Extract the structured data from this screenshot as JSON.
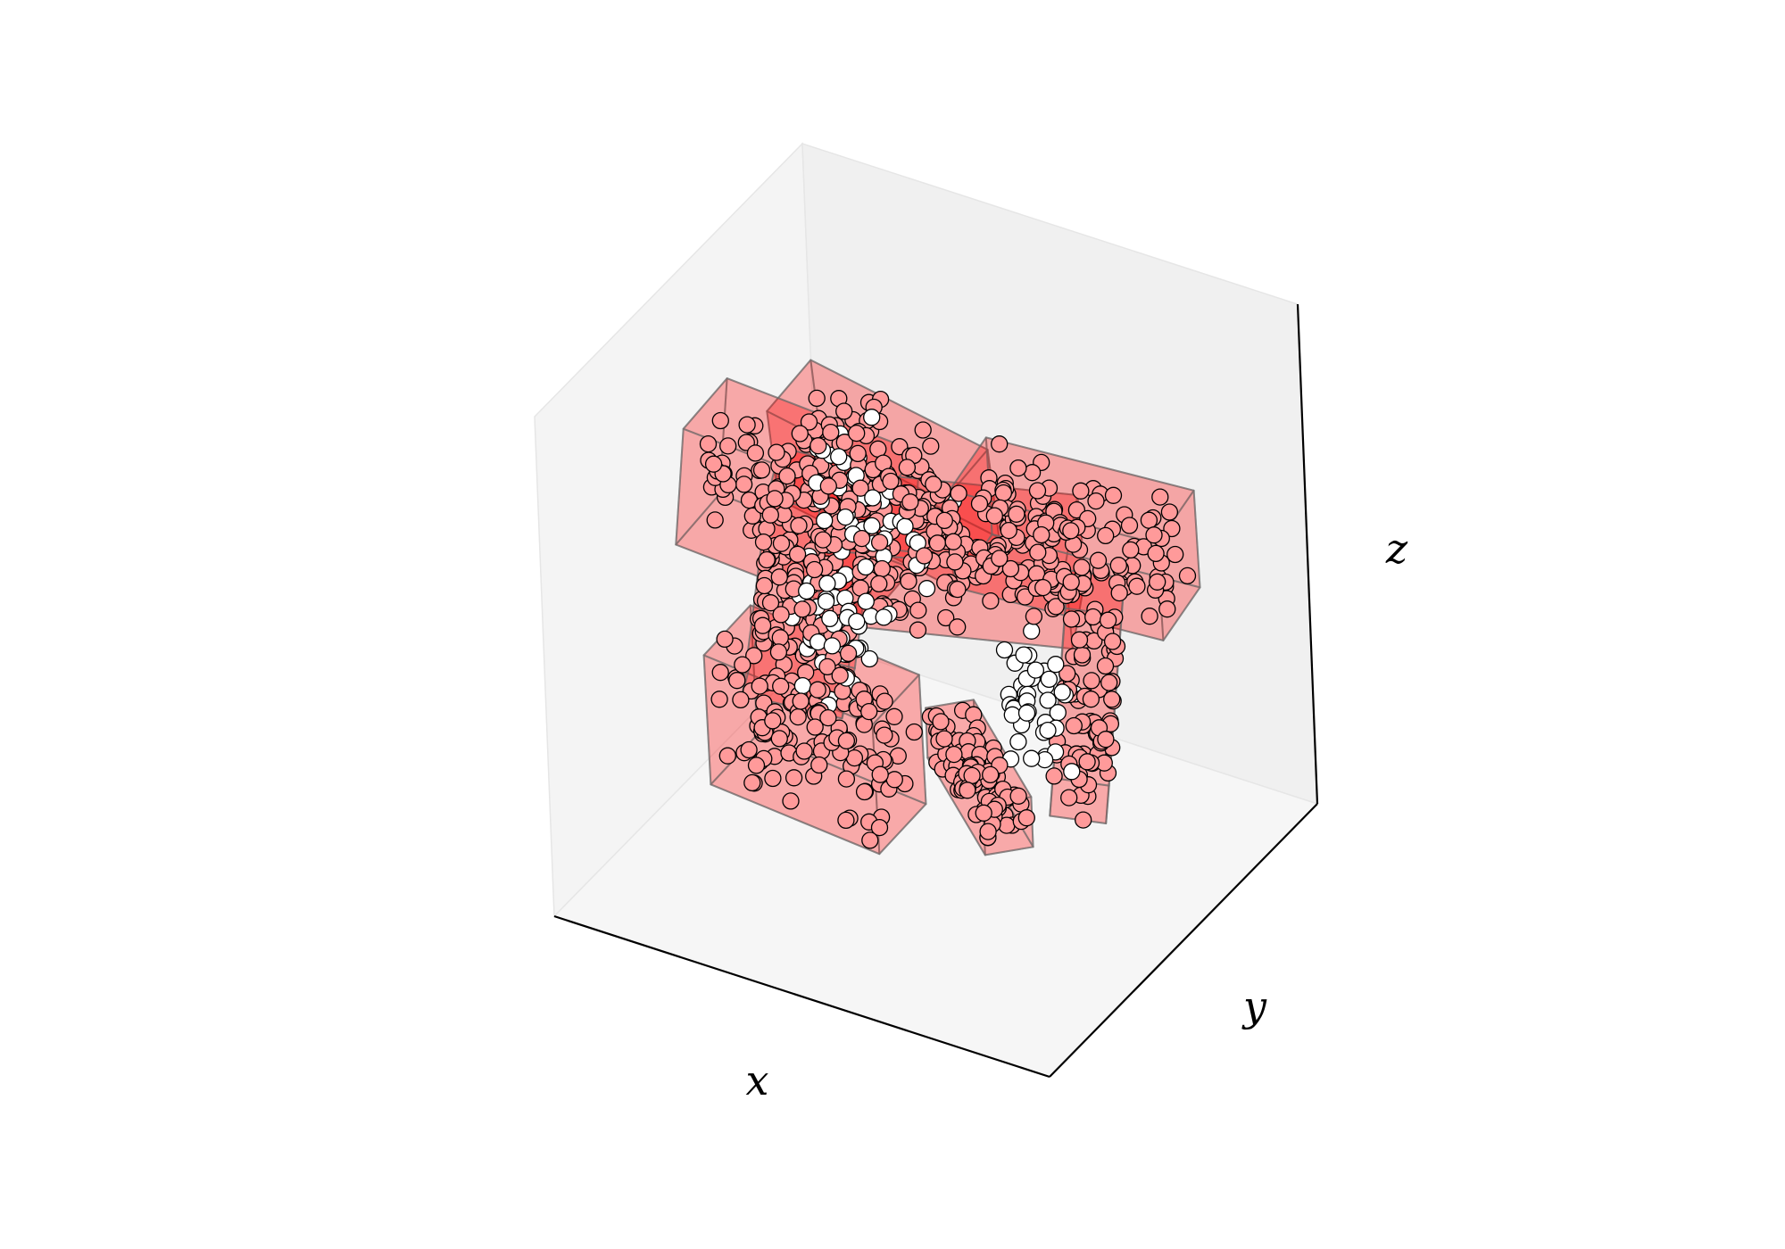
{
  "chart_data": {
    "type": "scatter",
    "projection": "3d",
    "title": "",
    "xlabel": "x",
    "ylabel": "y",
    "zlabel": "z",
    "ticks": "hidden",
    "grid": false,
    "xlim": [
      0,
      10
    ],
    "ylim": [
      0,
      10
    ],
    "zlim": [
      0,
      10
    ],
    "colors": {
      "box_fill": "#ff0000",
      "box_edge": "#6b6b6b",
      "point_inside": "#ff9a9a",
      "point_outside": "#ffffff",
      "point_edge": "#000000",
      "pane_left": "#f4f4f4",
      "pane_back": "#f0f0f0",
      "pane_floor": "#f6f6f6"
    },
    "boxes": [
      {
        "center": [
          4.8,
          4.0,
          8.2
        ],
        "size": [
          3.8,
          1.4,
          2.2
        ],
        "rot": [
          0.25,
          0.1,
          -0.1
        ],
        "points": 90
      },
      {
        "center": [
          2.3,
          5.3,
          6.2
        ],
        "size": [
          3.8,
          1.8,
          2.4
        ],
        "rot": [
          0.0,
          0.1,
          0.05
        ],
        "points": 110
      },
      {
        "center": [
          4.0,
          2.6,
          3.6
        ],
        "size": [
          3.5,
          1.6,
          2.8
        ],
        "rot": [
          0.1,
          0.05,
          -0.05
        ],
        "points": 120
      },
      {
        "center": [
          3.3,
          3.9,
          5.6
        ],
        "size": [
          1.8,
          1.5,
          4.2
        ],
        "rot": [
          0.05,
          0.15,
          0.35
        ],
        "points": 110
      },
      {
        "center": [
          5.3,
          5.4,
          5.9
        ],
        "size": [
          4.5,
          1.7,
          2.0
        ],
        "rot": [
          0.25,
          0.0,
          0.35
        ],
        "points": 120
      },
      {
        "center": [
          7.3,
          6.4,
          6.4
        ],
        "size": [
          4.0,
          1.7,
          2.0
        ],
        "rot": [
          0.05,
          0.0,
          0.1
        ],
        "points": 110
      },
      {
        "center": [
          6.3,
          4.4,
          2.4
        ],
        "size": [
          3.2,
          0.9,
          1.0
        ],
        "rot": [
          0.0,
          0.0,
          -0.75
        ],
        "points": 90
      },
      {
        "center": [
          7.6,
          6.1,
          3.5
        ],
        "size": [
          1.0,
          1.2,
          4.2
        ],
        "rot": [
          0.0,
          0.1,
          0.45
        ],
        "points": 80
      }
    ],
    "outside_points": 140
  }
}
